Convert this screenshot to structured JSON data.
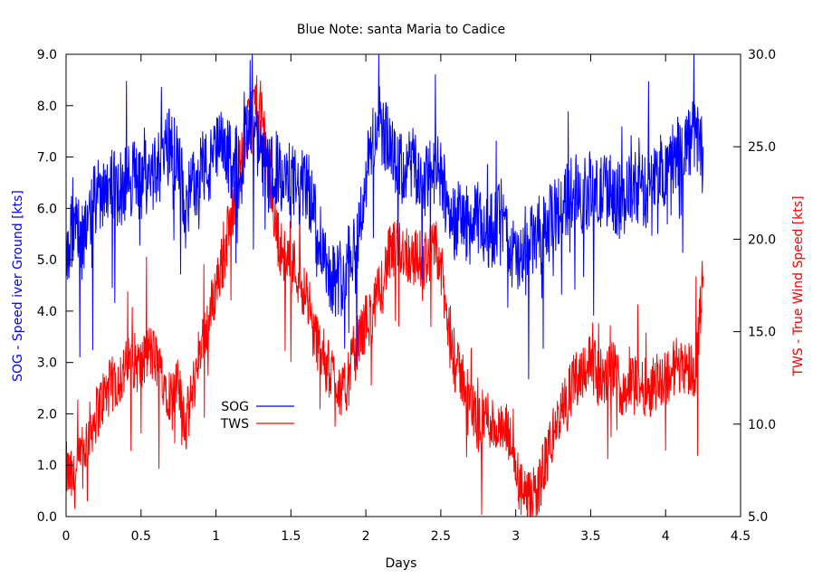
{
  "chart_data": {
    "type": "line",
    "title": "Blue Note: santa Maria to Cadice",
    "xlabel": "Days",
    "ylabel_left": "SOG - Speed iver Ground [kts]",
    "ylabel_right": "TWS - True Wind Speed [kts]",
    "xlim": [
      0,
      4.5
    ],
    "ylim_left": [
      0,
      9
    ],
    "ylim_right": [
      5,
      30
    ],
    "x_ticks": [
      "0",
      "0.5",
      "1",
      "1.5",
      "2",
      "2.5",
      "3",
      "3.5",
      "4",
      "4.5"
    ],
    "y_left_ticks": [
      "0.0",
      "1.0",
      "2.0",
      "3.0",
      "4.0",
      "5.0",
      "6.0",
      "7.0",
      "8.0",
      "9.0"
    ],
    "y_right_ticks": [
      "5.0",
      "10.0",
      "15.0",
      "20.0",
      "25.0",
      "30.0"
    ],
    "grid": false,
    "legend_position": "lower-left-center",
    "series": [
      {
        "name": "SOG",
        "axis": "left",
        "color": "#0000ff",
        "x": [
          0,
          0.05,
          0.1,
          0.15,
          0.2,
          0.25,
          0.3,
          0.35,
          0.4,
          0.45,
          0.5,
          0.55,
          0.6,
          0.65,
          0.7,
          0.75,
          0.8,
          0.85,
          0.9,
          0.95,
          1.0,
          1.05,
          1.1,
          1.15,
          1.2,
          1.25,
          1.3,
          1.35,
          1.4,
          1.45,
          1.5,
          1.55,
          1.6,
          1.65,
          1.7,
          1.75,
          1.8,
          1.85,
          1.9,
          1.95,
          2.0,
          2.05,
          2.1,
          2.15,
          2.2,
          2.25,
          2.3,
          2.35,
          2.4,
          2.45,
          2.5,
          2.55,
          2.6,
          2.65,
          2.7,
          2.75,
          2.8,
          2.85,
          2.9,
          2.95,
          3.0,
          3.05,
          3.1,
          3.15,
          3.2,
          3.25,
          3.3,
          3.35,
          3.4,
          3.45,
          3.5,
          3.55,
          3.6,
          3.65,
          3.7,
          3.75,
          3.8,
          3.85,
          3.9,
          3.95,
          4.0,
          4.05,
          4.1,
          4.15,
          4.2,
          4.25
        ],
        "values": [
          5.2,
          5.6,
          5.4,
          5.8,
          6.2,
          6.4,
          6.6,
          6.3,
          6.5,
          6.7,
          6.4,
          6.9,
          6.6,
          7.0,
          7.3,
          6.8,
          6.0,
          6.5,
          6.9,
          6.7,
          7.1,
          7.2,
          6.9,
          7.0,
          7.3,
          7.5,
          7.0,
          6.6,
          6.8,
          6.4,
          6.6,
          6.3,
          6.5,
          6.0,
          5.4,
          4.8,
          4.6,
          4.8,
          5.2,
          5.5,
          6.6,
          7.4,
          7.7,
          7.2,
          6.8,
          6.7,
          6.9,
          6.6,
          6.5,
          6.8,
          6.6,
          6.0,
          5.8,
          5.8,
          5.6,
          5.8,
          5.5,
          5.6,
          5.9,
          5.3,
          5.0,
          4.9,
          5.3,
          5.5,
          5.6,
          5.8,
          6.0,
          6.2,
          6.5,
          6.2,
          6.4,
          6.2,
          6.4,
          6.3,
          6.1,
          6.3,
          6.4,
          6.3,
          6.4,
          6.7,
          6.8,
          7.0,
          7.1,
          7.3,
          7.4,
          7.2
        ]
      },
      {
        "name": "TWS",
        "axis": "right",
        "color": "#ff0000",
        "x": [
          0,
          0.05,
          0.1,
          0.15,
          0.2,
          0.25,
          0.3,
          0.35,
          0.4,
          0.45,
          0.5,
          0.55,
          0.6,
          0.65,
          0.7,
          0.75,
          0.8,
          0.85,
          0.9,
          0.95,
          1.0,
          1.05,
          1.1,
          1.15,
          1.2,
          1.25,
          1.3,
          1.35,
          1.4,
          1.45,
          1.5,
          1.55,
          1.6,
          1.65,
          1.7,
          1.75,
          1.8,
          1.85,
          1.9,
          1.95,
          2.0,
          2.05,
          2.1,
          2.15,
          2.2,
          2.25,
          2.3,
          2.35,
          2.4,
          2.45,
          2.5,
          2.55,
          2.6,
          2.65,
          2.7,
          2.75,
          2.8,
          2.85,
          2.9,
          2.95,
          3.0,
          3.05,
          3.1,
          3.15,
          3.2,
          3.25,
          3.3,
          3.35,
          3.4,
          3.45,
          3.5,
          3.55,
          3.6,
          3.65,
          3.7,
          3.75,
          3.8,
          3.85,
          3.9,
          3.95,
          4.0,
          4.05,
          4.1,
          4.15,
          4.2,
          4.25
        ],
        "values": [
          7.5,
          6.8,
          8.0,
          9.5,
          10.5,
          11.5,
          12.0,
          12.5,
          13.0,
          13.5,
          13.0,
          14.0,
          13.5,
          12.5,
          11.5,
          12.0,
          10.0,
          12.0,
          14.5,
          15.5,
          17.5,
          19.0,
          21.0,
          23.5,
          25.5,
          27.5,
          27.0,
          24.0,
          20.5,
          19.0,
          19.0,
          18.0,
          17.0,
          15.0,
          14.0,
          13.0,
          12.5,
          11.5,
          13.0,
          14.5,
          15.5,
          16.0,
          17.5,
          19.0,
          19.5,
          19.5,
          19.0,
          19.0,
          19.0,
          19.5,
          18.5,
          15.0,
          13.0,
          12.5,
          11.0,
          10.0,
          10.5,
          10.0,
          9.5,
          9.5,
          7.5,
          6.0,
          5.8,
          6.5,
          8.0,
          9.5,
          10.5,
          11.5,
          12.5,
          13.0,
          13.5,
          12.5,
          12.5,
          13.0,
          12.0,
          12.0,
          12.5,
          12.0,
          12.0,
          12.5,
          12.5,
          13.0,
          13.5,
          13.0,
          13.0,
          18.0
        ]
      }
    ]
  }
}
